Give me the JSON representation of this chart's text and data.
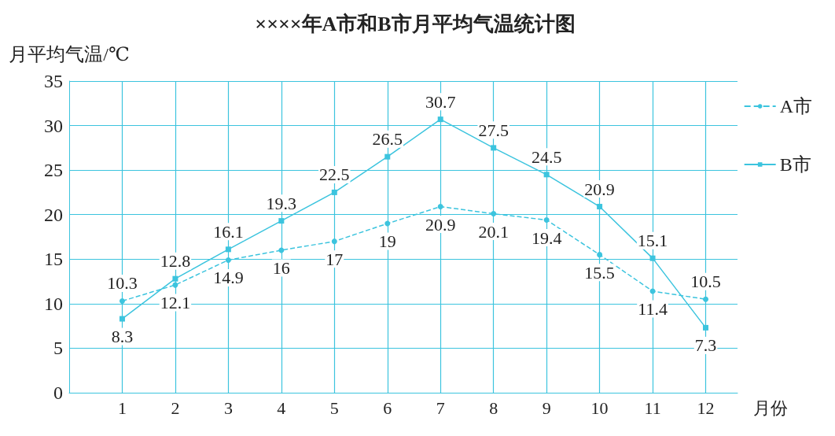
{
  "chart_data": {
    "type": "line",
    "title": "××××年A市和B市月平均气温统计图",
    "ylabel": "月平均气温/℃",
    "xlabel": "月份",
    "x": [
      1,
      2,
      3,
      4,
      5,
      6,
      7,
      8,
      9,
      10,
      11,
      12
    ],
    "xlim": [
      0,
      12.6
    ],
    "xticks": [
      1,
      2,
      3,
      4,
      5,
      6,
      7,
      8,
      9,
      10,
      11,
      12
    ],
    "ylim": [
      0,
      35
    ],
    "yticks": [
      0,
      5,
      10,
      15,
      20,
      25,
      30,
      35
    ],
    "series": [
      {
        "name": "A市",
        "color": "#3cc4de",
        "marker": "circle",
        "line_style": "dashed",
        "values": [
          10.3,
          12.1,
          14.9,
          16,
          17,
          19,
          20.9,
          20.1,
          19.4,
          15.5,
          11.4,
          10.5
        ]
      },
      {
        "name": "B市",
        "color": "#3cc4de",
        "marker": "square",
        "line_style": "solid",
        "values": [
          8.3,
          12.8,
          16.1,
          19.3,
          22.5,
          26.5,
          30.7,
          27.5,
          24.5,
          20.9,
          15.1,
          7.3
        ]
      }
    ],
    "data_labels": true,
    "grid": true,
    "legend": "top right"
  }
}
